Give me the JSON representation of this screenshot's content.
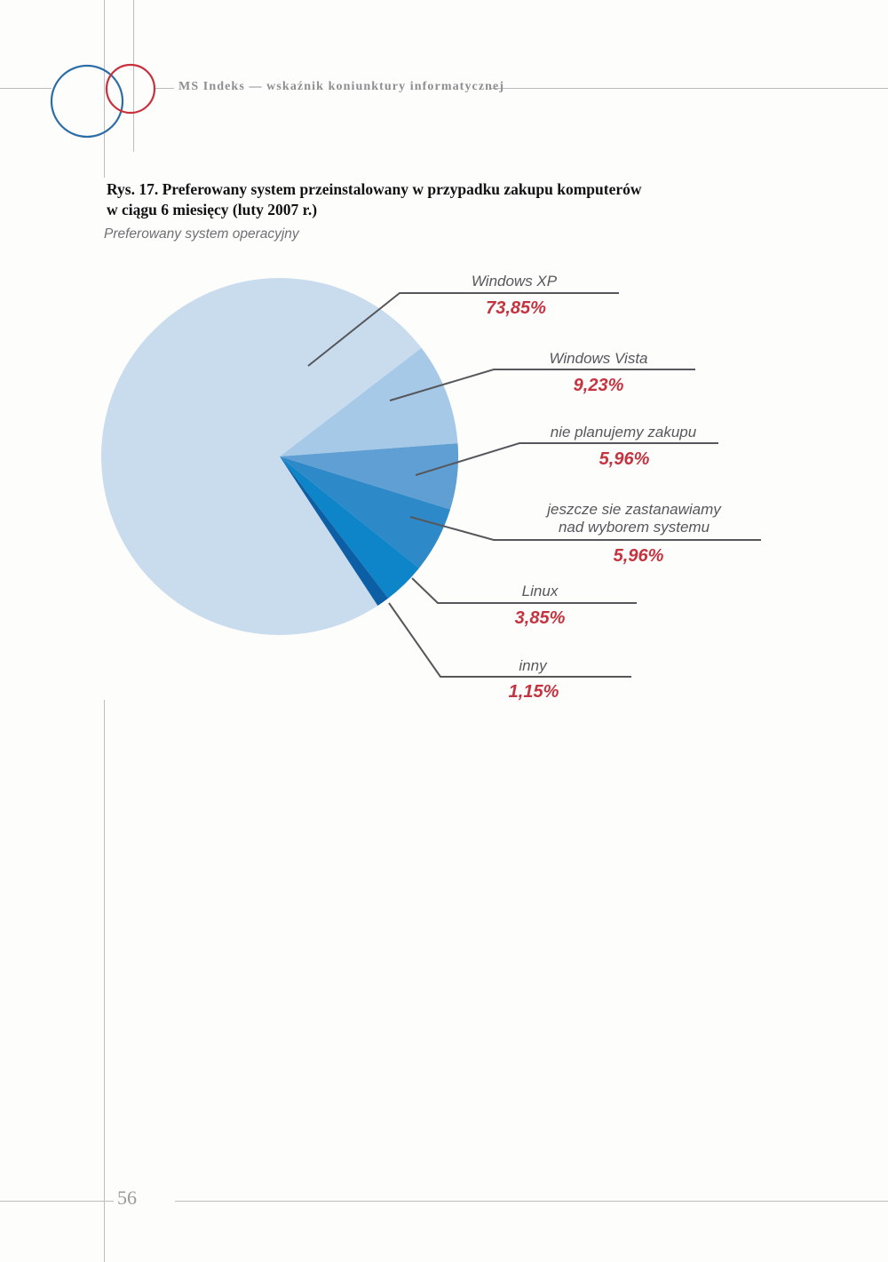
{
  "page": {
    "header_brand": "MS Indeks — wskaźnik koniunktury informatycznej",
    "page_number": "56"
  },
  "figure": {
    "caption_line1": "Rys. 17. Preferowany system przeinstalowany w przypadku zakupu komputerów",
    "caption_line2": "w ciągu 6 miesięcy (luty 2007 r.)",
    "subtitle": "Preferowany system operacyjny"
  },
  "chart_data": {
    "type": "pie",
    "title": "Preferowany system operacyjny",
    "unit": "%",
    "start_angle_deg": -56.7,
    "direction": "clockwise",
    "legend_position": "right-callouts",
    "label_color": "#56575b",
    "value_color": "#c43440",
    "leader_line_color": "#56575b",
    "slices": [
      {
        "label": "Windows XP",
        "value": 73.85,
        "value_label": "73,85%",
        "color": "#c9dcee"
      },
      {
        "label": "Windows Vista",
        "value": 9.23,
        "value_label": "9,23%",
        "color": "#a6c9e7"
      },
      {
        "label": "nie planujemy zakupu",
        "value": 5.96,
        "value_label": "5,96%",
        "color": "#5f9fd3"
      },
      {
        "label": "jeszcze sie zastanawiamy\nnad wyborem systemu",
        "value": 5.96,
        "value_label": "5,96%",
        "color": "#2d89c8"
      },
      {
        "label": "Linux",
        "value": 3.85,
        "value_label": "3,85%",
        "color": "#0d85c8"
      },
      {
        "label": "inny",
        "value": 1.15,
        "value_label": "1,15%",
        "color": "#0d5fa5"
      }
    ]
  }
}
